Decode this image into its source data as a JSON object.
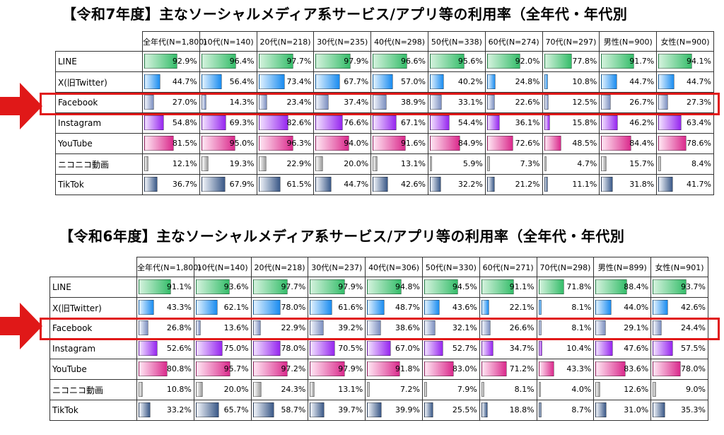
{
  "tables": [
    {
      "title": "【令和7年度】主なソーシャルメディア系サービス/アプリ等の利用率（全年代・年代別",
      "columns": [
        "全年代(N=1,800)",
        "10代(N=140)",
        "20代(N=218)",
        "30代(N=235)",
        "40代(N=298)",
        "50代(N=338)",
        "60代(N=274)",
        "70代(N=297)",
        "男性(N=900)",
        "女性(N=900)"
      ],
      "rows": [
        {
          "label": "LINE",
          "values": [
            92.9,
            96.4,
            97.7,
            97.9,
            96.6,
            95.6,
            92.0,
            77.8,
            91.7,
            94.1
          ]
        },
        {
          "label": "X(旧Twitter)",
          "values": [
            44.7,
            56.4,
            73.4,
            67.7,
            57.0,
            40.2,
            24.8,
            10.8,
            44.7,
            44.7
          ]
        },
        {
          "label": "Facebook",
          "values": [
            27.0,
            14.3,
            23.4,
            37.4,
            38.9,
            33.1,
            22.6,
            12.5,
            26.7,
            27.3
          ]
        },
        {
          "label": "Instagram",
          "values": [
            54.8,
            69.3,
            82.6,
            76.6,
            67.1,
            54.4,
            36.1,
            15.8,
            46.2,
            63.4
          ]
        },
        {
          "label": "YouTube",
          "values": [
            81.5,
            95.0,
            96.3,
            94.0,
            91.6,
            84.9,
            72.6,
            48.5,
            84.4,
            78.6
          ]
        },
        {
          "label": "ニコニコ動画",
          "values": [
            12.1,
            19.3,
            22.9,
            20.0,
            13.1,
            5.9,
            7.3,
            4.7,
            15.7,
            8.4
          ]
        },
        {
          "label": "TikTok",
          "values": [
            36.7,
            67.9,
            61.5,
            44.7,
            42.6,
            32.2,
            21.2,
            11.1,
            31.8,
            41.7
          ]
        }
      ]
    },
    {
      "title": "【令和6年度】主なソーシャルメディア系サービス/アプリ等の利用率（全年代・年代別",
      "columns": [
        "全年代(N=1,800)",
        "10代(N=140)",
        "20代(N=218)",
        "30代(N=237)",
        "40代(N=306)",
        "50代(N=330)",
        "60代(N=271)",
        "70代(N=298)",
        "男性(N=899)",
        "女性(N=901)"
      ],
      "rows": [
        {
          "label": "LINE",
          "values": [
            91.1,
            93.6,
            97.7,
            97.9,
            94.8,
            94.5,
            91.1,
            71.8,
            88.4,
            93.7
          ]
        },
        {
          "label": "X(旧Twitter)",
          "values": [
            43.3,
            62.1,
            78.0,
            61.6,
            48.7,
            43.6,
            22.1,
            8.1,
            44.0,
            42.6
          ]
        },
        {
          "label": "Facebook",
          "values": [
            26.8,
            13.6,
            22.9,
            39.2,
            38.6,
            32.1,
            26.6,
            8.1,
            29.1,
            24.4
          ]
        },
        {
          "label": "Instagram",
          "values": [
            52.6,
            75.0,
            78.0,
            70.5,
            67.0,
            52.7,
            34.7,
            10.4,
            47.6,
            57.5
          ]
        },
        {
          "label": "YouTube",
          "values": [
            80.8,
            95.7,
            97.2,
            97.9,
            91.8,
            83.0,
            71.2,
            43.3,
            83.6,
            78.0
          ]
        },
        {
          "label": "ニコニコ動画",
          "values": [
            10.8,
            20.0,
            24.3,
            13.1,
            7.2,
            7.9,
            8.1,
            4.0,
            12.6,
            9.0
          ]
        },
        {
          "label": "TikTok",
          "values": [
            33.2,
            65.7,
            58.7,
            39.7,
            39.9,
            25.5,
            18.8,
            8.7,
            31.0,
            35.3
          ]
        }
      ]
    }
  ],
  "chart_data": [
    {
      "type": "table",
      "title": "【令和7年度】主なソーシャルメディア系サービス/アプリ等の利用率（全年代・年代別",
      "categories": [
        "全年代(N=1,800)",
        "10代(N=140)",
        "20代(N=218)",
        "30代(N=235)",
        "40代(N=298)",
        "50代(N=338)",
        "60代(N=274)",
        "70代(N=297)",
        "男性(N=900)",
        "女性(N=900)"
      ],
      "series": [
        {
          "name": "LINE",
          "values": [
            92.9,
            96.4,
            97.7,
            97.9,
            96.6,
            95.6,
            92.0,
            77.8,
            91.7,
            94.1
          ]
        },
        {
          "name": "X(旧Twitter)",
          "values": [
            44.7,
            56.4,
            73.4,
            67.7,
            57.0,
            40.2,
            24.8,
            10.8,
            44.7,
            44.7
          ]
        },
        {
          "name": "Facebook",
          "values": [
            27.0,
            14.3,
            23.4,
            37.4,
            38.9,
            33.1,
            22.6,
            12.5,
            26.7,
            27.3
          ]
        },
        {
          "name": "Instagram",
          "values": [
            54.8,
            69.3,
            82.6,
            76.6,
            67.1,
            54.4,
            36.1,
            15.8,
            46.2,
            63.4
          ]
        },
        {
          "name": "YouTube",
          "values": [
            81.5,
            95.0,
            96.3,
            94.0,
            91.6,
            84.9,
            72.6,
            48.5,
            84.4,
            78.6
          ]
        },
        {
          "name": "ニコニコ動画",
          "values": [
            12.1,
            19.3,
            22.9,
            20.0,
            13.1,
            5.9,
            7.3,
            4.7,
            15.7,
            8.4
          ]
        },
        {
          "name": "TikTok",
          "values": [
            36.7,
            67.9,
            61.5,
            44.7,
            42.6,
            32.2,
            21.2,
            11.1,
            31.8,
            41.7
          ]
        }
      ],
      "ylim": [
        0,
        100
      ]
    },
    {
      "type": "table",
      "title": "【令和6年度】主なソーシャルメディア系サービス/アプリ等の利用率（全年代・年代別",
      "categories": [
        "全年代(N=1,800)",
        "10代(N=140)",
        "20代(N=218)",
        "30代(N=237)",
        "40代(N=306)",
        "50代(N=330)",
        "60代(N=271)",
        "70代(N=298)",
        "男性(N=899)",
        "女性(N=901)"
      ],
      "series": [
        {
          "name": "LINE",
          "values": [
            91.1,
            93.6,
            97.7,
            97.9,
            94.8,
            94.5,
            91.1,
            71.8,
            88.4,
            93.7
          ]
        },
        {
          "name": "X(旧Twitter)",
          "values": [
            43.3,
            62.1,
            78.0,
            61.6,
            48.7,
            43.6,
            22.1,
            8.1,
            44.0,
            42.6
          ]
        },
        {
          "name": "Facebook",
          "values": [
            26.8,
            13.6,
            22.9,
            39.2,
            38.6,
            32.1,
            26.6,
            8.1,
            29.1,
            24.4
          ]
        },
        {
          "name": "Instagram",
          "values": [
            52.6,
            75.0,
            78.0,
            70.5,
            67.0,
            52.7,
            34.7,
            10.4,
            47.6,
            57.5
          ]
        },
        {
          "name": "YouTube",
          "values": [
            80.8,
            95.7,
            97.2,
            97.9,
            91.8,
            83.0,
            71.2,
            43.3,
            83.6,
            78.0
          ]
        },
        {
          "name": "ニコニコ動画",
          "values": [
            10.8,
            20.0,
            24.3,
            13.1,
            7.2,
            7.9,
            8.1,
            4.0,
            12.6,
            9.0
          ]
        },
        {
          "name": "TikTok",
          "values": [
            33.2,
            65.7,
            58.7,
            39.7,
            39.9,
            25.5,
            18.8,
            8.7,
            31.0,
            35.3
          ]
        }
      ],
      "ylim": [
        0,
        100
      ]
    }
  ],
  "styles": {
    "bar_colors": {
      "LINE": [
        "#d4f2dd",
        "#35bd6a"
      ],
      "X(旧Twitter)": [
        "#e2f2ff",
        "#1a8cf0"
      ],
      "Facebook": [
        "#f3f6fc",
        "#7c8fc0"
      ],
      "Instagram": [
        "#f2e2ff",
        "#9626ef"
      ],
      "YouTube": [
        "#ffe6f3",
        "#da2a8c"
      ],
      "ニコニコ動画": [
        "#ffffff",
        "#9a9a9a"
      ],
      "TikTok": [
        "#f2f5fa",
        "#3a5887"
      ]
    },
    "highlight_color": "#e01818",
    "highlight_row": "Facebook"
  }
}
